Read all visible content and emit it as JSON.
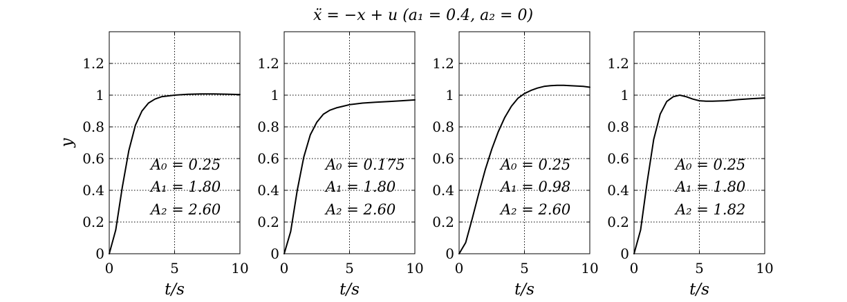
{
  "title": "ẍ = −x + u    (a₁ = 0.4, a₂ = 0)",
  "colors": {
    "curve": "#000000",
    "grid": "#000000",
    "axes": "#000000",
    "background": "#ffffff"
  },
  "chart_data": [
    {
      "type": "line",
      "xlabel": "t/s",
      "ylabel": "y",
      "xlim": [
        0,
        10
      ],
      "ylim": [
        0,
        1.4
      ],
      "xticks": [
        "0",
        "5",
        "10"
      ],
      "yticks": [
        "0",
        "0.2",
        "0.4",
        "0.6",
        "0.8",
        "1",
        "1.2"
      ],
      "grid": true,
      "annotations": [
        "A₀ = 0.25",
        "A₁ = 1.80",
        "A₂ = 2.60"
      ],
      "series": [
        {
          "x": [
            0,
            0.5,
            1,
            1.5,
            2,
            2.5,
            3,
            3.5,
            4,
            4.5,
            5,
            6,
            7,
            8,
            9,
            10
          ],
          "y": [
            0,
            0.15,
            0.42,
            0.65,
            0.81,
            0.9,
            0.95,
            0.975,
            0.99,
            0.995,
            1.0,
            1.005,
            1.008,
            1.008,
            1.006,
            1.004
          ]
        }
      ]
    },
    {
      "type": "line",
      "xlabel": "t/s",
      "ylabel": "",
      "xlim": [
        0,
        10
      ],
      "ylim": [
        0,
        1.4
      ],
      "xticks": [
        "0",
        "5",
        "10"
      ],
      "yticks": [
        "0",
        "0.2",
        "0.4",
        "0.6",
        "0.8",
        "1",
        "1.2"
      ],
      "grid": true,
      "annotations": [
        "A₀ = 0.175",
        "A₁ = 1.80",
        "A₂ = 2.60"
      ],
      "series": [
        {
          "x": [
            0,
            0.5,
            1,
            1.5,
            2,
            2.5,
            3,
            3.5,
            4,
            4.5,
            5,
            6,
            7,
            8,
            9,
            10
          ],
          "y": [
            0,
            0.14,
            0.4,
            0.61,
            0.75,
            0.83,
            0.88,
            0.905,
            0.92,
            0.93,
            0.94,
            0.95,
            0.955,
            0.96,
            0.965,
            0.97
          ]
        }
      ]
    },
    {
      "type": "line",
      "xlabel": "t/s",
      "ylabel": "",
      "xlim": [
        0,
        10
      ],
      "ylim": [
        0,
        1.4
      ],
      "xticks": [
        "0",
        "5",
        "10"
      ],
      "yticks": [
        "0",
        "0.2",
        "0.4",
        "0.6",
        "0.8",
        "1",
        "1.2"
      ],
      "grid": true,
      "annotations": [
        "A₀ = 0.25",
        "A₁ = 0.98",
        "A₂ = 2.60"
      ],
      "series": [
        {
          "x": [
            0,
            0.5,
            1,
            1.5,
            2,
            2.5,
            3,
            3.5,
            4,
            4.5,
            5,
            5.5,
            6,
            6.5,
            7,
            7.5,
            8,
            8.5,
            9,
            9.5,
            10
          ],
          "y": [
            0,
            0.07,
            0.22,
            0.38,
            0.53,
            0.66,
            0.77,
            0.86,
            0.93,
            0.98,
            1.01,
            1.03,
            1.045,
            1.055,
            1.06,
            1.062,
            1.062,
            1.06,
            1.058,
            1.055,
            1.05
          ]
        }
      ]
    },
    {
      "type": "line",
      "xlabel": "t/s",
      "ylabel": "",
      "xlim": [
        0,
        10
      ],
      "ylim": [
        0,
        1.4
      ],
      "xticks": [
        "0",
        "5",
        "10"
      ],
      "yticks": [
        "0",
        "0.2",
        "0.4",
        "0.6",
        "0.8",
        "1",
        "1.2"
      ],
      "grid": true,
      "annotations": [
        "A₀ = 0.25",
        "A₁ = 1.80",
        "A₂ = 1.82"
      ],
      "series": [
        {
          "x": [
            0,
            0.5,
            1,
            1.5,
            2,
            2.5,
            3,
            3.5,
            4,
            4.5,
            5,
            5.5,
            6,
            7,
            8,
            9,
            10
          ],
          "y": [
            0,
            0.15,
            0.45,
            0.72,
            0.88,
            0.96,
            0.99,
            1.0,
            0.99,
            0.975,
            0.965,
            0.962,
            0.962,
            0.965,
            0.972,
            0.978,
            0.982
          ]
        }
      ]
    }
  ]
}
